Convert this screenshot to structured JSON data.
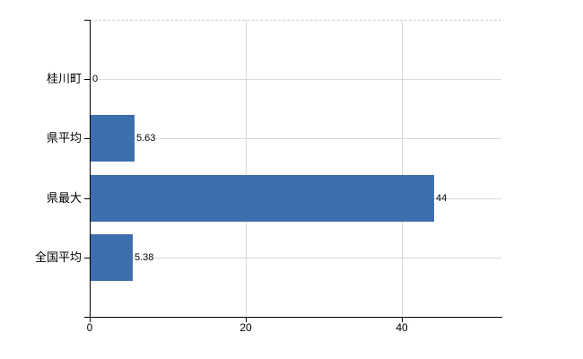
{
  "chart_data": {
    "type": "bar",
    "orientation": "horizontal",
    "title": "",
    "xlabel": "",
    "ylabel": "",
    "categories": [
      "桂川町",
      "県平均",
      "県最大",
      "全国平均"
    ],
    "values": [
      0,
      5.63,
      44,
      5.38
    ],
    "value_labels": [
      "0",
      "5.63",
      "44",
      "5.38"
    ],
    "xticks": [
      0,
      20,
      40
    ],
    "xtick_labels": [
      "0",
      "20",
      "40"
    ],
    "xlim": [
      0,
      52.8
    ],
    "grid": true,
    "legend": false,
    "colors": {
      "bar": "#3d6ead",
      "gridline": "#d6dcd2",
      "axis": "#000000",
      "text": "#000000",
      "background": "#ffffff",
      "frame": "#cccccc"
    }
  }
}
